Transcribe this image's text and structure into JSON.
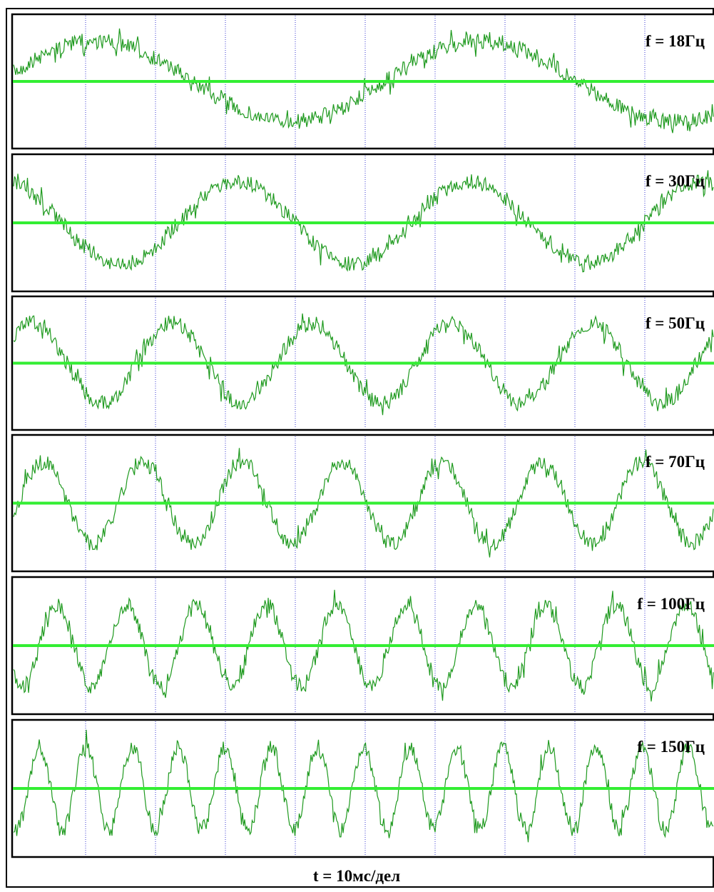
{
  "panels": [
    {
      "label": "f = 18Гц"
    },
    {
      "label": "f = 30Гц"
    },
    {
      "label": "f = 50Гц"
    },
    {
      "label": "f = 70Гц"
    },
    {
      "label": "f = 100Гц"
    },
    {
      "label": "f = 150Гц"
    }
  ],
  "footer": "t = 10мс/дел"
}
